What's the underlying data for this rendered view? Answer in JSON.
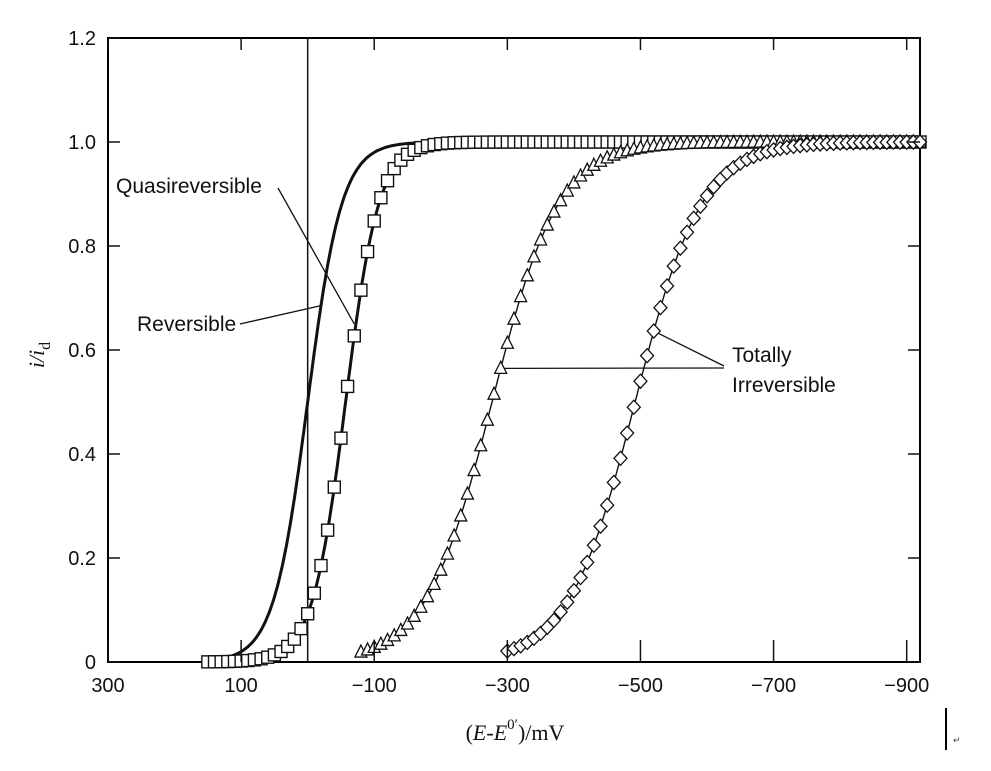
{
  "chart_data": {
    "type": "scatter",
    "title": "",
    "xlabel": "(E-E0′)/mV",
    "ylabel": "i/id",
    "xlim": [
      300,
      -920
    ],
    "ylim": [
      0,
      1.2
    ],
    "x_ticks": [
      300,
      100,
      -100,
      -300,
      -500,
      -700,
      -900
    ],
    "x_tick_labels": [
      "300",
      "100",
      "−100",
      "−300",
      "−500",
      "−700",
      "−900"
    ],
    "y_ticks": [
      0,
      0.2,
      0.4,
      0.6,
      0.8,
      1.0,
      1.2
    ],
    "y_tick_labels": [
      "0",
      "0.2",
      "0.4",
      "0.6",
      "0.8",
      "1.0",
      "1.2"
    ],
    "vertical_reference_line_x": 0,
    "series": [
      {
        "name": "Reversible",
        "marker": "none",
        "line": "thick",
        "half_wave_potential": 0,
        "slope_mV": 25.7,
        "x_range": [
          150,
          -920
        ]
      },
      {
        "name": "Quasireversible",
        "marker": "square",
        "line": "thick",
        "half_wave_potential": -57,
        "slope_mV": 25,
        "x_range": [
          150,
          -920
        ]
      },
      {
        "name": "Totally Irreversible",
        "marker": "triangle",
        "line": "thin",
        "half_wave_potential": -277,
        "slope_mV": 50,
        "x_range": [
          -80,
          -920
        ]
      },
      {
        "name": "Totally Irreversible",
        "marker": "diamond",
        "line": "thin",
        "half_wave_potential": -492,
        "slope_mV": 50,
        "x_range": [
          -300,
          -920
        ]
      }
    ],
    "annotations": [
      {
        "text": "Quasireversible",
        "target": "Quasireversible"
      },
      {
        "text": "Reversible",
        "target": "Reversible"
      },
      {
        "text": "Totally",
        "target": "Totally Irreversible"
      },
      {
        "text": "Irreversible",
        "target": "Totally Irreversible"
      }
    ]
  },
  "axis_title_parts": {
    "x_open": "(",
    "x_E": "E",
    "x_dash": "-",
    "x_E0": "E",
    "x_sup": "0′",
    "x_unit": ")/mV",
    "y_i": "i/i",
    "y_sub": "d"
  },
  "colors": {
    "ink": "#111111",
    "frame": "#000000",
    "background": "#ffffff"
  }
}
